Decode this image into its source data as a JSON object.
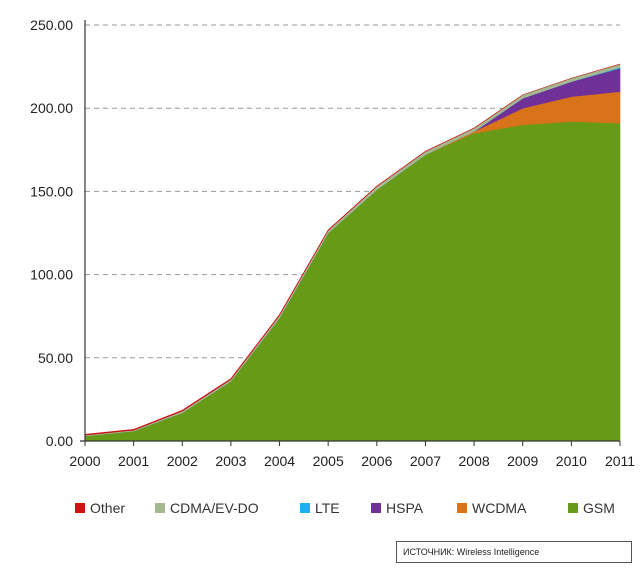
{
  "source_label": "ИСТОЧНИК: Wireless Intelligence",
  "chart_data": {
    "type": "area",
    "stacked": true,
    "title": "",
    "xlabel": "",
    "ylabel": "",
    "x": [
      "2000",
      "2001",
      "2002",
      "2003",
      "2004",
      "2005",
      "2006",
      "2007",
      "2008",
      "2009",
      "2010",
      "2011"
    ],
    "ylim": [
      0,
      250
    ],
    "yticks": [
      "0.00",
      "50.00",
      "100.00",
      "150.00",
      "200.00",
      "250.00"
    ],
    "grid": "horizontal dashed",
    "legend": "bottom",
    "series": [
      {
        "name": "GSM",
        "color": "#669a17",
        "values": [
          3,
          6,
          17,
          36,
          74,
          125,
          151,
          172,
          185,
          190,
          192,
          191
        ]
      },
      {
        "name": "WCDMA",
        "color": "#d9731a",
        "values": [
          0,
          0,
          0,
          0,
          0,
          0,
          0,
          0,
          1,
          10,
          15,
          19
        ]
      },
      {
        "name": "HSPA",
        "color": "#6f3198",
        "values": [
          0,
          0,
          0,
          0,
          0,
          0,
          0,
          0,
          0,
          6,
          9,
          14
        ]
      },
      {
        "name": "LTE",
        "color": "#1ab2e8",
        "values": [
          0,
          0,
          0,
          0,
          0,
          0,
          0,
          0,
          0,
          0,
          0,
          0.5
        ]
      },
      {
        "name": "CDMA/EV-DO",
        "color": "#a3b890",
        "values": [
          0.5,
          0.5,
          1,
          1,
          1.5,
          1.5,
          2,
          2,
          2,
          2,
          2,
          2
        ]
      },
      {
        "name": "Other",
        "color": "#cc1111",
        "values": [
          0.5,
          0.5,
          0.5,
          0.5,
          0.5,
          0.3,
          0.2,
          0.1,
          0.1,
          0,
          0,
          0
        ]
      }
    ],
    "legend_order": [
      "Other",
      "CDMA/EV-DO",
      "LTE",
      "HSPA",
      "WCDMA",
      "GSM"
    ]
  }
}
